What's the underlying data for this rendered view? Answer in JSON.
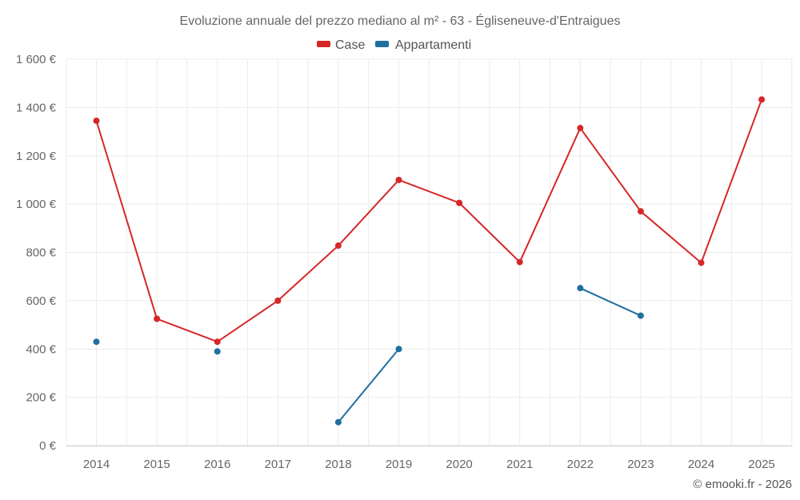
{
  "chart_data": {
    "type": "line",
    "title": "Evoluzione annuale del prezzo mediano al m² - 63 - Égliseneuve-d'Entraigues",
    "categories": [
      "2014",
      "2015",
      "2016",
      "2017",
      "2018",
      "2019",
      "2020",
      "2021",
      "2022",
      "2023",
      "2024",
      "2025"
    ],
    "ylim": [
      0,
      1600
    ],
    "yticks": [
      0,
      200,
      400,
      600,
      800,
      1000,
      1200,
      1400,
      1600
    ],
    "ytick_labels": [
      "0 €",
      "200 €",
      "400 €",
      "600 €",
      "800 €",
      "1 000 €",
      "1 200 €",
      "1 400 €",
      "1 600 €"
    ],
    "xlabel": "",
    "ylabel": "",
    "grid": true,
    "legend_position": "top-center",
    "series": [
      {
        "name": "Case",
        "color": "#d62728",
        "values": [
          1345,
          525,
          430,
          600,
          828,
          1100,
          1005,
          760,
          1315,
          970,
          757,
          1433
        ]
      },
      {
        "name": "Appartamenti",
        "color": "#1f6f9f",
        "values": [
          430,
          null,
          390,
          null,
          97,
          400,
          null,
          null,
          652,
          538,
          null,
          null
        ]
      }
    ]
  },
  "credit": "© emooki.fr - 2026"
}
